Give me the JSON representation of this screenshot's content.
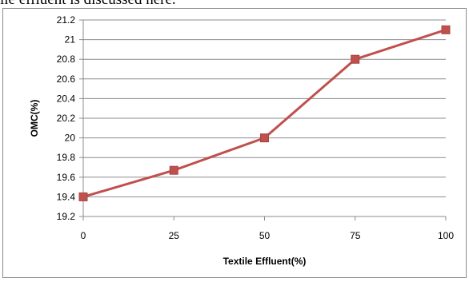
{
  "page": {
    "cropped_top_text": "ile effluent is discussed here."
  },
  "chart_data": {
    "type": "line",
    "title": "",
    "xlabel": "Textile Effluent(%)",
    "ylabel": "OMC(%)",
    "categories": [
      "0",
      "25",
      "50",
      "75",
      "100"
    ],
    "series": [
      {
        "values": [
          19.4,
          19.67,
          20.0,
          20.8,
          21.1
        ]
      }
    ],
    "ylim": [
      19.2,
      21.2
    ],
    "yticks": [
      "19.2",
      "19.4",
      "19.6",
      "19.8",
      "20",
      "20.2",
      "20.4",
      "20.6",
      "20.8",
      "21",
      "21.2"
    ],
    "grid": true,
    "legend": "none",
    "colors": {
      "line": "#c0504d",
      "marker": "#c0504d",
      "grid": "#8c8c8c",
      "axis": "#8c8c8c"
    }
  }
}
